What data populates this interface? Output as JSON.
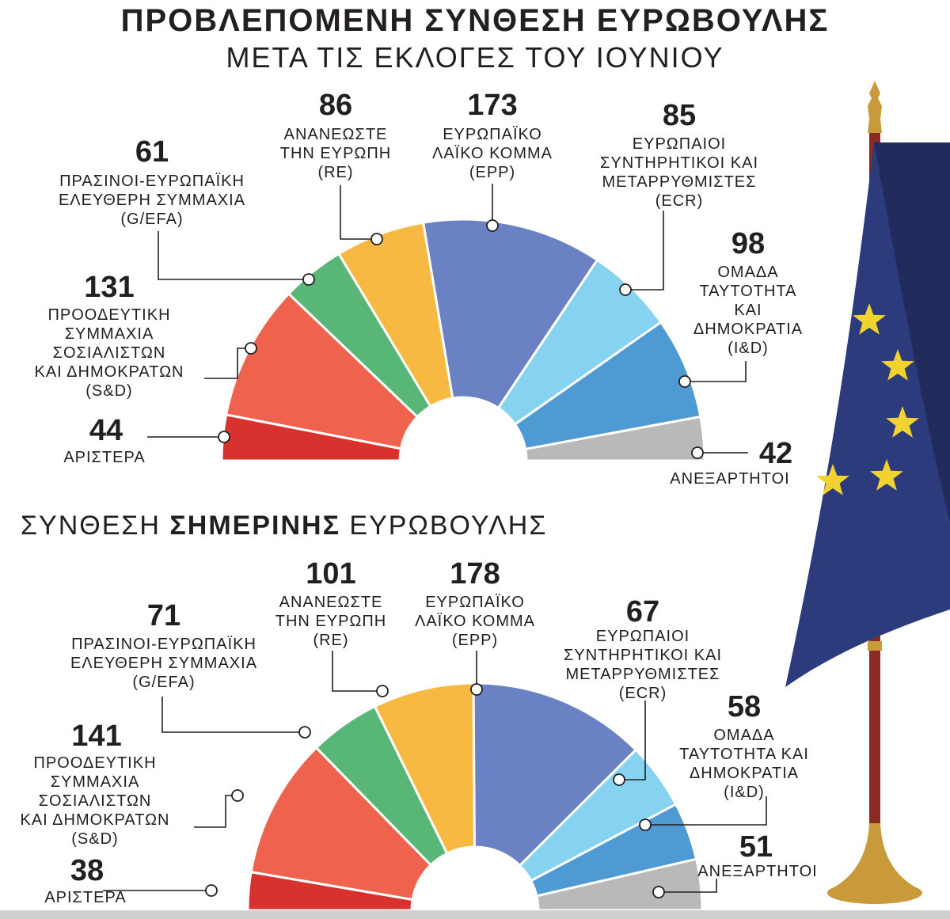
{
  "title": "ΠΡΟΒΛΕΠΟΜΕΝΗ ΣΥΝΘΕΣΗ ΕΥΡΩΒΟΥΛΗΣ",
  "subtitle": "ΜΕΤΑ ΤΙΣ ΕΚΛΟΓΕΣ ΤΟΥ ΙΟΥΝΙΟΥ",
  "section2": {
    "part1": "ΣΥΝΘΕΣΗ ",
    "bold": "ΣΗΜΕΡΙΝΗΣ",
    "part2": " ΕΥΡΩΒΟΥΛΗΣ"
  },
  "colors": {
    "left": "#d7322d",
    "sd": "#ef634e",
    "greens": "#58b677",
    "renew": "#f8b942",
    "epp": "#6a82c4",
    "ecr": "#86d3f1",
    "id": "#4f9ad3",
    "ni": "#b9b9b9",
    "flag": "#2c3b7c",
    "star": "#f2d22f",
    "pole": "#8a2a22",
    "gold": "#c99a3a"
  },
  "chart_data": [
    {
      "type": "pie",
      "shape": "half-donut",
      "categories": [
        "ΑΡΙΣΤΕΡΑ",
        "S&D",
        "G/EFA",
        "RE",
        "EPP",
        "ECR",
        "I&D",
        "ΑΝΕΞΑΡΤΗΤΟΙ"
      ],
      "values": [
        44,
        131,
        61,
        86,
        173,
        85,
        98,
        42
      ],
      "labels": [
        {
          "value": "44",
          "lines": [
            "ΑΡΙΣΤΕΡΑ"
          ]
        },
        {
          "value": "131",
          "lines": [
            "ΠΡΟΟΔΕΥΤΙΚΗ",
            "ΣΥΜΜΑΧΙΑ",
            "ΣΟΣΙΑΛΙΣΤΩΝ",
            "ΚΑΙ ΔΗΜΟΚΡΑΤΩΝ",
            "(S&D)"
          ]
        },
        {
          "value": "61",
          "lines": [
            "ΠΡΑΣΙΝΟΙ-ΕΥΡΩΠΑΪΚΗ",
            "ΕΛΕΥΘΕΡΗ ΣΥΜΜΑΧΙΑ",
            "(G/EFA)"
          ]
        },
        {
          "value": "86",
          "lines": [
            "ΑΝΑΝΕΩΣΤΕ",
            "ΤΗΝ ΕΥΡΩΠΗ",
            "(RE)"
          ]
        },
        {
          "value": "173",
          "lines": [
            "ΕΥΡΩΠΑΪΚΟ",
            "ΛΑΪΚΟ ΚΟΜΜΑ",
            "(EPP)"
          ]
        },
        {
          "value": "85",
          "lines": [
            "ΕΥΡΩΠΑΙΟΙ",
            "ΣΥΝΤΗΡΗΤΙΚΟΙ ΚΑΙ",
            "ΜΕΤΑΡΡΥΘΜΙΣΤΕΣ",
            "(ECR)"
          ]
        },
        {
          "value": "98",
          "lines": [
            "ΟΜΑΔΑ",
            "ΤΑΥΤΟΤΗΤΑ",
            "ΚΑΙ",
            "ΔΗΜΟΚΡΑΤΙΑ",
            "(I&D)"
          ]
        },
        {
          "value": "42",
          "lines": [
            "ΑΝΕΞΑΡΤΗΤΟΙ"
          ]
        }
      ]
    },
    {
      "type": "pie",
      "shape": "half-donut",
      "categories": [
        "ΑΡΙΣΤΕΡΑ",
        "S&D",
        "G/EFA",
        "RE",
        "EPP",
        "ECR",
        "I&D",
        "ΑΝΕΞΑΡΤΗΤΟΙ"
      ],
      "values": [
        38,
        141,
        71,
        101,
        178,
        67,
        58,
        51
      ],
      "labels": [
        {
          "value": "38",
          "lines": [
            "ΑΡΙΣΤΕΡΑ"
          ]
        },
        {
          "value": "141",
          "lines": [
            "ΠΡΟΟΔΕΥΤΙΚΗ",
            "ΣΥΜΜΑΧΙΑ",
            "ΣΟΣΙΑΛΙΣΤΩΝ",
            "ΚΑΙ ΔΗΜΟΚΡΑΤΩΝ",
            "(S&D)"
          ]
        },
        {
          "value": "71",
          "lines": [
            "ΠΡΑΣΙΝΟΙ-ΕΥΡΩΠΑΪΚΗ",
            "ΕΛΕΥΘΕΡΗ ΣΥΜΜΑΧΙΑ",
            "(G/EFA)"
          ]
        },
        {
          "value": "101",
          "lines": [
            "ΑΝΑΝΕΩΣΤΕ",
            "ΤΗΝ ΕΥΡΩΠΗ",
            "(RE)"
          ]
        },
        {
          "value": "178",
          "lines": [
            "ΕΥΡΩΠΑΪΚΟ",
            "ΛΑΪΚΟ ΚΟΜΜΑ",
            "(EPP)"
          ]
        },
        {
          "value": "67",
          "lines": [
            "ΕΥΡΩΠΑΙΟΙ",
            "ΣΥΝΤΗΡΗΤΙΚΟΙ ΚΑΙ",
            "ΜΕΤΑΡΡΥΘΜΙΣΤΕΣ",
            "(ECR)"
          ]
        },
        {
          "value": "58",
          "lines": [
            "ΟΜΑΔΑ",
            "ΤΑΥΤΟΤΗΤΑ ΚΑΙ",
            "ΔΗΜΟΚΡΑΤΙΑ",
            "(I&D)"
          ]
        },
        {
          "value": "51",
          "lines": [
            "ΑΝΕΞΑΡΤΗΤΟΙ"
          ]
        }
      ]
    }
  ]
}
